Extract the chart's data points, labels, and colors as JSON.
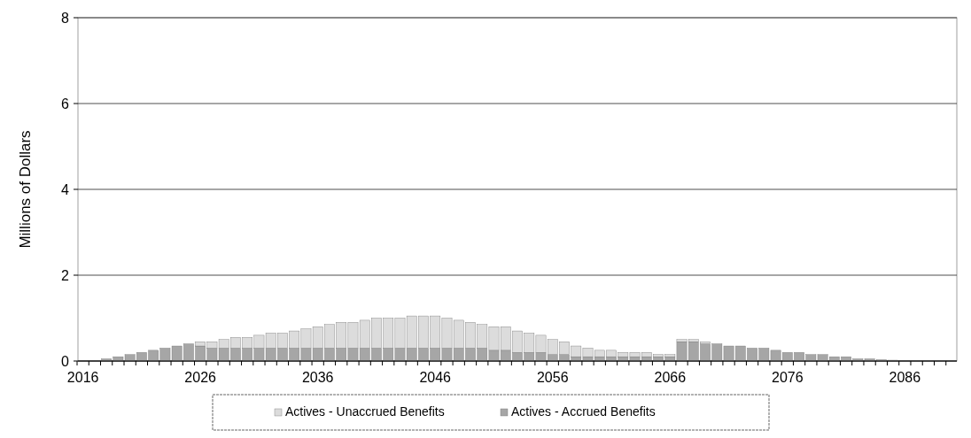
{
  "chart_data": {
    "type": "bar",
    "stacked": true,
    "ylabel": "Millions of Dollars",
    "categories": [
      "2016",
      null,
      null,
      null,
      null,
      null,
      null,
      null,
      null,
      null,
      "2026",
      null,
      null,
      null,
      null,
      null,
      null,
      null,
      null,
      null,
      "2036",
      null,
      null,
      null,
      null,
      null,
      null,
      null,
      null,
      null,
      "2046",
      null,
      null,
      null,
      null,
      null,
      null,
      null,
      null,
      null,
      "2056",
      null,
      null,
      null,
      null,
      null,
      null,
      null,
      null,
      null,
      "2066",
      null,
      null,
      null,
      null,
      null,
      null,
      null,
      null,
      null,
      "2076",
      null,
      null,
      null,
      null,
      null,
      null,
      null,
      null,
      null,
      "2086",
      null,
      null,
      null,
      null
    ],
    "series": [
      {
        "name": "Actives - Accrued Benefits",
        "color": "#a6a6a6",
        "values": [
          0,
          0,
          0.05,
          0.1,
          0.15,
          0.2,
          0.25,
          0.3,
          0.35,
          0.4,
          0.35,
          0.3,
          0.3,
          0.3,
          0.3,
          0.3,
          0.3,
          0.3,
          0.3,
          0.3,
          0.3,
          0.3,
          0.3,
          0.3,
          0.3,
          0.3,
          0.3,
          0.3,
          0.3,
          0.3,
          0.3,
          0.3,
          0.3,
          0.3,
          0.3,
          0.25,
          0.25,
          0.2,
          0.2,
          0.2,
          0.15,
          0.15,
          0.1,
          0.1,
          0.1,
          0.1,
          0.1,
          0.1,
          0.1,
          0.1,
          0.1,
          0.45,
          0.45,
          0.4,
          0.4,
          0.35,
          0.35,
          0.3,
          0.3,
          0.25,
          0.2,
          0.2,
          0.15,
          0.15,
          0.1,
          0.1,
          0.05,
          0.05,
          0.03,
          0.02,
          0,
          0,
          0,
          0,
          0
        ]
      },
      {
        "name": "Actives - Unaccrued Benefits",
        "color": "#dcdcdc",
        "values": [
          0,
          0,
          0,
          0,
          0,
          0,
          0,
          0,
          0,
          0,
          0.1,
          0.15,
          0.2,
          0.25,
          0.25,
          0.3,
          0.35,
          0.35,
          0.4,
          0.45,
          0.5,
          0.55,
          0.6,
          0.6,
          0.65,
          0.7,
          0.7,
          0.7,
          0.75,
          0.75,
          0.75,
          0.7,
          0.65,
          0.6,
          0.55,
          0.55,
          0.55,
          0.5,
          0.45,
          0.4,
          0.35,
          0.3,
          0.25,
          0.2,
          0.15,
          0.15,
          0.1,
          0.1,
          0.1,
          0.05,
          0.05,
          0.05,
          0.05,
          0.05,
          0,
          0,
          0,
          0,
          0,
          0,
          0,
          0,
          0,
          0,
          0,
          0,
          0,
          0,
          0,
          0,
          0,
          0,
          0,
          0,
          0
        ]
      }
    ],
    "ylim": [
      0,
      8
    ],
    "yticks": [
      0,
      2,
      4,
      6,
      8
    ],
    "grid": "y",
    "legend": "bottom"
  }
}
